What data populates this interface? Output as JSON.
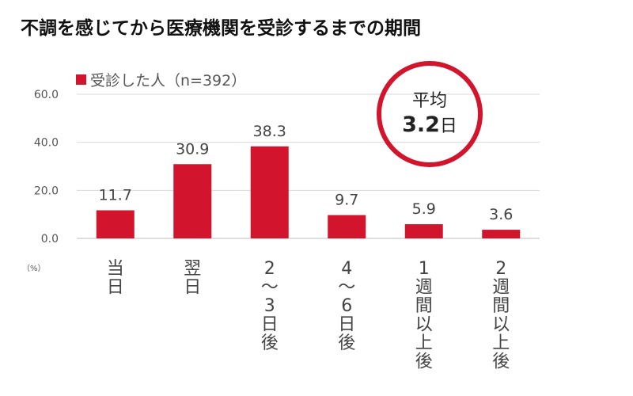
{
  "title": "不調を感じてから医療機関を受診するまでの期間",
  "chart_data": {
    "type": "bar",
    "categories": [
      "当日",
      "翌日",
      "2〜3日後",
      "4〜6日後",
      "1週間以上後",
      "2週間以上後"
    ],
    "series": [
      {
        "name": "受診した人（n=392）",
        "values": [
          11.7,
          30.9,
          38.3,
          9.7,
          5.9,
          3.6
        ]
      }
    ],
    "value_labels": [
      "11.7",
      "30.9",
      "38.3",
      "9.7",
      "5.9",
      "3.6"
    ],
    "y_ticks": [
      "0.0",
      "20.0",
      "40.0",
      "60.0"
    ],
    "ylim": [
      0,
      60
    ],
    "unit": "（%）",
    "legend": {
      "label": "受診した人（n=392）",
      "position": "top-left"
    },
    "grid": true,
    "bar_color": "#d2152d",
    "annotation": {
      "label": "平均",
      "value": "3.2",
      "unit": "日",
      "ring_color": "#d2152d"
    }
  }
}
